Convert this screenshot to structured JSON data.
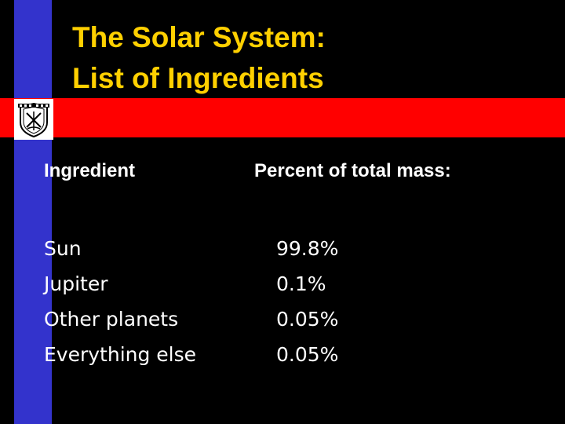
{
  "slide": {
    "title_lines": [
      "The Solar System:",
      "List of Ingredients"
    ],
    "columns": {
      "ingredient_header": "Ingredient",
      "percent_header": "Percent of total mass:"
    },
    "rows": [
      {
        "ingredient": "Sun",
        "percent": "99.8%"
      },
      {
        "ingredient": "Jupiter",
        "percent": "0.1%"
      },
      {
        "ingredient": "Other planets",
        "percent": "0.05%"
      },
      {
        "ingredient": "Everything else",
        "percent": "0.05%"
      }
    ]
  },
  "colors": {
    "background": "#000000",
    "title": "#FFD000",
    "text": "#FFFFFF",
    "accent_bar": "#3333CC",
    "accent_band": "#FF0000"
  },
  "icons": {
    "seal": "university-seal-icon"
  }
}
